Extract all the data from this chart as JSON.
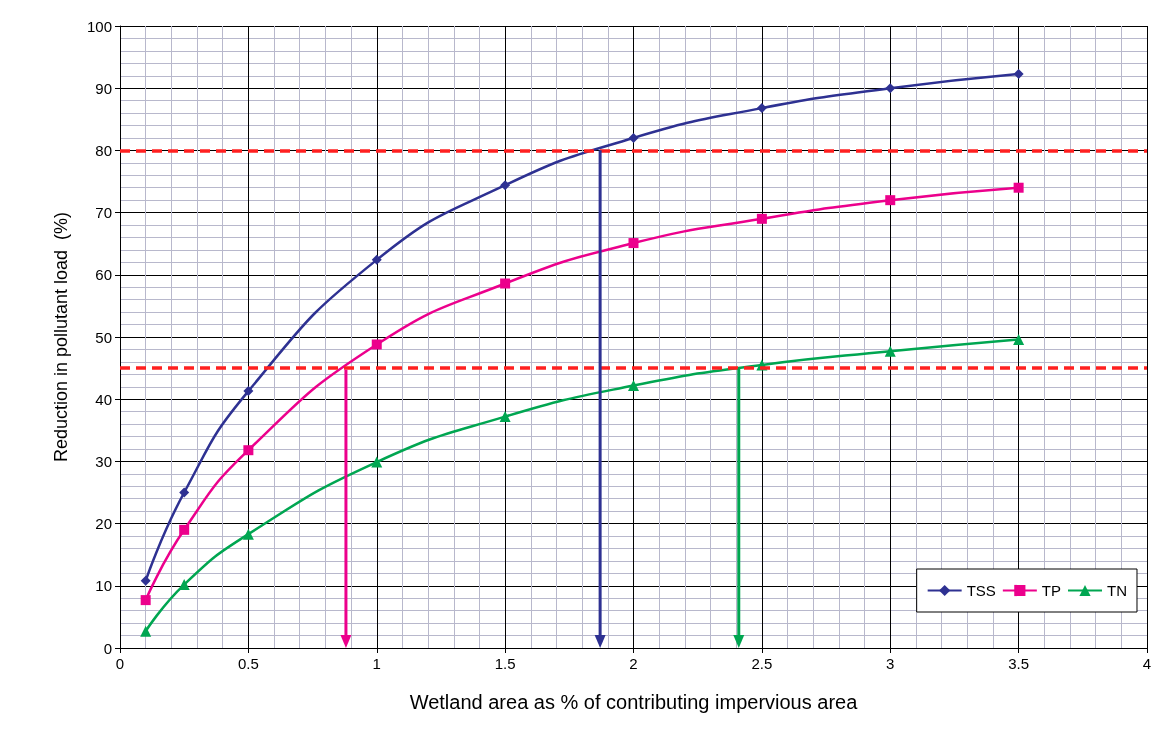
{
  "chart_data": {
    "type": "line",
    "xlabel": "Wetland area as % of contributing impervious area",
    "ylabel": "Reduction in pollutant load  (%)",
    "xlim": [
      0,
      4
    ],
    "xticks": [
      0,
      0.5,
      1,
      1.5,
      2,
      2.5,
      3,
      3.5,
      4
    ],
    "ylim": [
      0,
      100
    ],
    "yticks": [
      0,
      10,
      20,
      30,
      40,
      50,
      60,
      70,
      80,
      90,
      100
    ],
    "grid": true,
    "legend": "bottom right",
    "x": [
      0.1,
      0.25,
      0.5,
      1,
      1.5,
      2,
      2.5,
      3,
      3.5
    ],
    "series": [
      {
        "name": "TSS",
        "color": "#2e3192",
        "marker": "diamond",
        "values": [
          10.8,
          25,
          41.3,
          62.4,
          74.4,
          82,
          86.8,
          90,
          92.3
        ]
      },
      {
        "name": "TP",
        "color": "#ec008c",
        "marker": "square",
        "values": [
          7.7,
          19,
          31.8,
          48.8,
          58.6,
          65.1,
          69,
          72,
          74
        ]
      },
      {
        "name": "TN",
        "color": "#00a651",
        "marker": "triangle",
        "values": [
          2.7,
          10.2,
          18.3,
          29.9,
          37.2,
          42.2,
          45.5,
          47.7,
          49.6
        ]
      }
    ],
    "ref_lines": [
      {
        "axis": "y",
        "value": 80,
        "color": "#ff2020",
        "line_style": "dashed"
      },
      {
        "axis": "y",
        "value": 45,
        "color": "#ff2020",
        "line_style": "dashed"
      },
      {
        "axis": "x",
        "value": 0.88,
        "color": "#ec008c"
      },
      {
        "axis": "x",
        "value": 1.87,
        "color": "#2e3192"
      },
      {
        "axis": "x",
        "value": 2.41,
        "color": "#00a651"
      }
    ]
  }
}
